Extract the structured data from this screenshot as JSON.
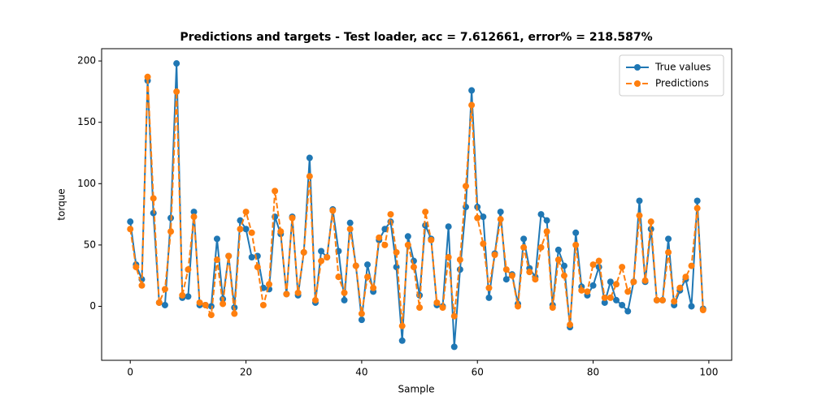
{
  "chart_data": {
    "type": "line",
    "title": "Predictions and targets - Test loader, acc = 7.612661, error% = 218.587%",
    "xlabel": "Sample",
    "ylabel": "torque",
    "x": [
      0,
      1,
      2,
      3,
      4,
      5,
      6,
      7,
      8,
      9,
      10,
      11,
      12,
      13,
      14,
      15,
      16,
      17,
      18,
      19,
      20,
      21,
      22,
      23,
      24,
      25,
      26,
      27,
      28,
      29,
      30,
      31,
      32,
      33,
      34,
      35,
      36,
      37,
      38,
      39,
      40,
      41,
      42,
      43,
      44,
      45,
      46,
      47,
      48,
      49,
      50,
      51,
      52,
      53,
      54,
      55,
      56,
      57,
      58,
      59,
      60,
      61,
      62,
      63,
      64,
      65,
      66,
      67,
      68,
      69,
      70,
      71,
      72,
      73,
      74,
      75,
      76,
      77,
      78,
      79,
      80,
      81,
      82,
      83,
      84,
      85,
      86,
      87,
      88,
      89,
      90,
      91,
      92,
      93,
      94,
      95,
      96,
      97,
      98,
      99
    ],
    "series": [
      {
        "name": "True values",
        "color": "#1f77b4",
        "linestyle": "solid",
        "values": [
          69,
          34,
          22,
          184,
          76,
          3,
          1,
          72,
          198,
          7,
          8,
          77,
          1,
          1,
          0,
          55,
          6,
          41,
          -1,
          70,
          63,
          40,
          41,
          15,
          14,
          73,
          59,
          10,
          73,
          9,
          44,
          121,
          3,
          45,
          40,
          79,
          45,
          5,
          68,
          33,
          -11,
          34,
          12,
          54,
          63,
          69,
          32,
          -28,
          57,
          37,
          9,
          66,
          55,
          1,
          0,
          65,
          -33,
          30,
          81,
          176,
          81,
          73,
          7,
          43,
          77,
          22,
          26,
          2,
          55,
          31,
          24,
          75,
          70,
          1,
          46,
          33,
          -17,
          60,
          16,
          9,
          17,
          32,
          3,
          20,
          5,
          1,
          -4,
          20,
          86,
          20,
          63,
          5,
          5,
          55,
          1,
          13,
          22,
          0,
          86,
          -2
        ]
      },
      {
        "name": "Predictions",
        "color": "#ff7f0e",
        "linestyle": "dashed",
        "values": [
          63,
          32,
          17,
          187,
          88,
          3,
          14,
          61,
          175,
          9,
          30,
          73,
          3,
          1,
          -7,
          38,
          2,
          41,
          -6,
          63,
          77,
          60,
          32,
          1,
          18,
          94,
          61,
          10,
          72,
          11,
          44,
          106,
          5,
          37,
          40,
          78,
          24,
          11,
          63,
          33,
          -6,
          24,
          15,
          56,
          50,
          75,
          44,
          -16,
          50,
          32,
          -1,
          77,
          54,
          3,
          -1,
          40,
          -8,
          38,
          98,
          164,
          72,
          51,
          15,
          42,
          71,
          30,
          25,
          0,
          48,
          28,
          22,
          48,
          61,
          -1,
          38,
          25,
          -15,
          50,
          13,
          12,
          34,
          37,
          7,
          7,
          18,
          32,
          12,
          20,
          74,
          21,
          69,
          5,
          5,
          44,
          4,
          15,
          24,
          33,
          80,
          -3
        ]
      }
    ],
    "xlim": [
      -4.95,
      103.95
    ],
    "ylim": [
      -44,
      210
    ],
    "xticks": [
      0,
      20,
      40,
      60,
      80,
      100
    ],
    "yticks": [
      0,
      50,
      100,
      150,
      200
    ],
    "legend": "upper right"
  }
}
